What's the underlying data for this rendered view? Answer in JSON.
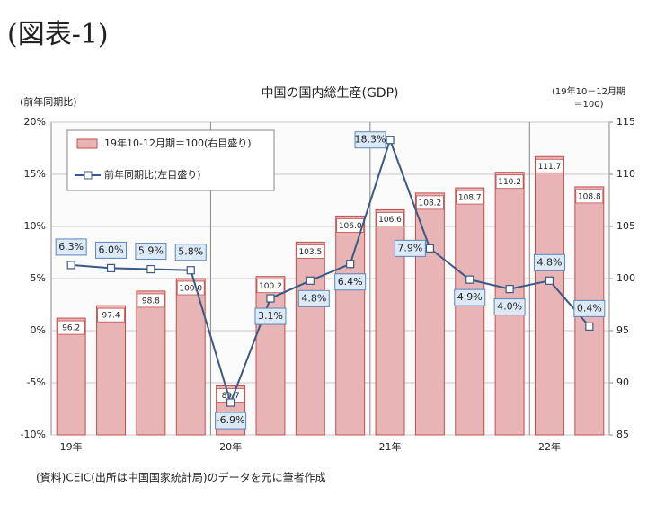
{
  "heading": "(図表-1)",
  "chart_data": {
    "type": "bar_line",
    "title": "中国の国内総生産(GDP)",
    "y_label": "(前年同期比)",
    "y2_label": [
      "(19年10－12月期",
      "＝100)"
    ],
    "source": "(資料)CEIC(出所は中国国家統計局)のデータを元に筆者作成",
    "categories": [
      "19年",
      null,
      null,
      null,
      "20年",
      null,
      null,
      null,
      "21年",
      null,
      null,
      null,
      "22年",
      null
    ],
    "series": [
      {
        "name": "19年10-12月期＝100(右目盛り)",
        "type": "bar",
        "axis": "y2",
        "color": "#e8b4b6",
        "edge": "#c0504d",
        "values": [
          96.2,
          97.4,
          98.8,
          100,
          89.7,
          100.2,
          103.5,
          106.0,
          106.6,
          108.2,
          108.7,
          110.2,
          111.7,
          108.8
        ],
        "value_labels": [
          "96.2",
          "97.4",
          "98.8",
          "100.0",
          "89.7",
          "100.2",
          "103.5",
          "106.0",
          "106.6",
          "108.2",
          "108.7",
          "110.2",
          "111.7",
          "108.8"
        ]
      },
      {
        "name": "前年同期比(左目盛り)",
        "type": "line",
        "axis": "y",
        "color": "#3a5a85",
        "values": [
          6.3,
          6.0,
          5.9,
          5.8,
          -6.9,
          3.1,
          4.8,
          6.4,
          18.3,
          7.9,
          4.9,
          4.0,
          4.8,
          0.4
        ],
        "value_labels": [
          "6.3%",
          "6.0%",
          "5.9%",
          "5.8%",
          "-6.9%",
          "3.1%",
          "4.8%",
          "6.4%",
          "18.3%",
          "7.9%",
          "4.9%",
          "4.0%",
          "4.8%",
          "0.4%"
        ]
      }
    ],
    "ylim": [
      -10,
      20
    ],
    "yticks": [
      {
        "value": -10,
        "label": "-10%"
      },
      {
        "value": -5,
        "label": "-5%"
      },
      {
        "value": 0,
        "label": "0%"
      },
      {
        "value": 5,
        "label": "5%"
      },
      {
        "value": 10,
        "label": "10%"
      },
      {
        "value": 15,
        "label": "15%"
      },
      {
        "value": 20,
        "label": "20%"
      }
    ],
    "y2lim": [
      85,
      115
    ],
    "y2ticks": [
      85,
      90,
      95,
      100,
      105,
      110,
      115
    ],
    "grid": true
  }
}
